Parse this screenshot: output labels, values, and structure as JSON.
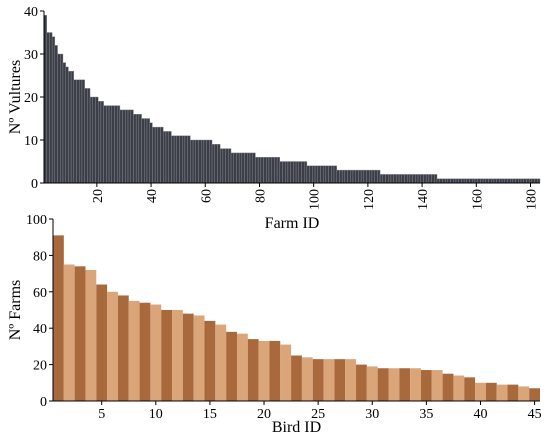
{
  "chart_data": [
    {
      "type": "bar",
      "xlabel": "Farm ID",
      "ylabel": "Nº Vultures",
      "x": [
        1,
        2,
        3,
        4,
        5,
        6,
        7,
        8,
        9,
        10,
        11,
        12,
        13,
        14,
        15,
        16,
        17,
        18,
        19,
        20,
        21,
        22,
        23,
        24,
        25,
        26,
        27,
        28,
        29,
        30,
        31,
        32,
        33,
        34,
        35,
        36,
        37,
        38,
        39,
        40,
        41,
        42,
        43,
        44,
        45,
        46,
        47,
        48,
        49,
        50,
        51,
        52,
        53,
        54,
        55,
        56,
        57,
        58,
        59,
        60,
        61,
        62,
        63,
        64,
        65,
        66,
        67,
        68,
        69,
        70,
        71,
        72,
        73,
        74,
        75,
        76,
        77,
        78,
        79,
        80,
        81,
        82,
        83,
        84,
        85,
        86,
        87,
        88,
        89,
        90,
        91,
        92,
        93,
        94,
        95,
        96,
        97,
        98,
        99,
        100,
        101,
        102,
        103,
        104,
        105,
        106,
        107,
        108,
        109,
        110,
        111,
        112,
        113,
        114,
        115,
        116,
        117,
        118,
        119,
        120,
        121,
        122,
        123,
        124,
        125,
        126,
        127,
        128,
        129,
        130,
        131,
        132,
        133,
        134,
        135,
        136,
        137,
        138,
        139,
        140,
        141,
        142,
        143,
        144,
        145,
        146,
        147,
        148,
        149,
        150,
        151,
        152,
        153,
        154,
        155,
        156,
        157,
        158,
        159,
        160,
        161,
        162,
        163,
        164,
        165,
        166,
        167,
        168,
        169,
        170,
        171,
        172,
        173,
        174,
        175,
        176,
        177,
        178,
        179,
        180,
        181,
        182,
        183
      ],
      "values": [
        39,
        35,
        35,
        34,
        32,
        30,
        30,
        28,
        27,
        26,
        26,
        24,
        24,
        24,
        24,
        22,
        22,
        20,
        20,
        20,
        19,
        19,
        18,
        18,
        18,
        18,
        18,
        18,
        17,
        17,
        17,
        17,
        17,
        16,
        16,
        16,
        15,
        15,
        15,
        14,
        13,
        13,
        13,
        13,
        12,
        12,
        12,
        11,
        11,
        11,
        11,
        11,
        11,
        11,
        10,
        10,
        10,
        10,
        10,
        10,
        10,
        10,
        9,
        9,
        9,
        8,
        8,
        8,
        8,
        7,
        7,
        7,
        7,
        7,
        7,
        7,
        7,
        7,
        6,
        6,
        6,
        6,
        6,
        6,
        6,
        6,
        6,
        5,
        5,
        5,
        5,
        5,
        5,
        5,
        5,
        5,
        5,
        4,
        4,
        4,
        4,
        4,
        4,
        4,
        4,
        4,
        4,
        4,
        3,
        3,
        3,
        3,
        3,
        3,
        3,
        3,
        3,
        3,
        3,
        3,
        3,
        3,
        3,
        3,
        2,
        2,
        2,
        2,
        2,
        2,
        2,
        2,
        2,
        2,
        2,
        2,
        2,
        2,
        2,
        2,
        2,
        2,
        2,
        2,
        2,
        1,
        1,
        1,
        1,
        1,
        1,
        1,
        1,
        1,
        1,
        1,
        1,
        1,
        1,
        1,
        1,
        1,
        1,
        1,
        1,
        1,
        1,
        1,
        1,
        1,
        1,
        1,
        1,
        1,
        1,
        1,
        1,
        1,
        1,
        1,
        1,
        1,
        1
      ],
      "colors": [
        "#3b3e46"
      ],
      "xlim": [
        0.5,
        183.5
      ],
      "xticks": [
        20,
        40,
        60,
        80,
        100,
        120,
        140,
        160,
        180
      ],
      "ylim": [
        0,
        40
      ],
      "yticks": [
        0,
        10,
        20,
        30,
        40
      ]
    },
    {
      "type": "bar",
      "xlabel": "Bird ID",
      "ylabel": "Nº Farms",
      "x": [
        1,
        2,
        3,
        4,
        5,
        6,
        7,
        8,
        9,
        10,
        11,
        12,
        13,
        14,
        15,
        16,
        17,
        18,
        19,
        20,
        21,
        22,
        23,
        24,
        25,
        26,
        27,
        28,
        29,
        30,
        31,
        32,
        33,
        34,
        35,
        36,
        37,
        38,
        39,
        40,
        41,
        42,
        43,
        44,
        45
      ],
      "values": [
        91,
        75,
        74,
        72,
        64,
        60,
        58,
        55,
        54,
        53,
        50,
        50,
        48,
        47,
        44,
        42,
        38,
        37,
        34,
        33,
        33,
        31,
        25,
        24,
        23,
        23,
        23,
        23,
        20,
        19,
        18,
        18,
        18,
        18,
        17,
        17,
        15,
        14,
        13,
        10,
        10,
        9,
        9,
        8,
        7
      ],
      "colors": [
        "#a8693d",
        "#dba57a"
      ],
      "xlim": [
        0.5,
        45.5
      ],
      "xticks": [
        5,
        10,
        15,
        20,
        25,
        30,
        35,
        40,
        45
      ],
      "ylim": [
        0,
        100
      ],
      "yticks": [
        0,
        20,
        40,
        60,
        80,
        100
      ]
    }
  ]
}
